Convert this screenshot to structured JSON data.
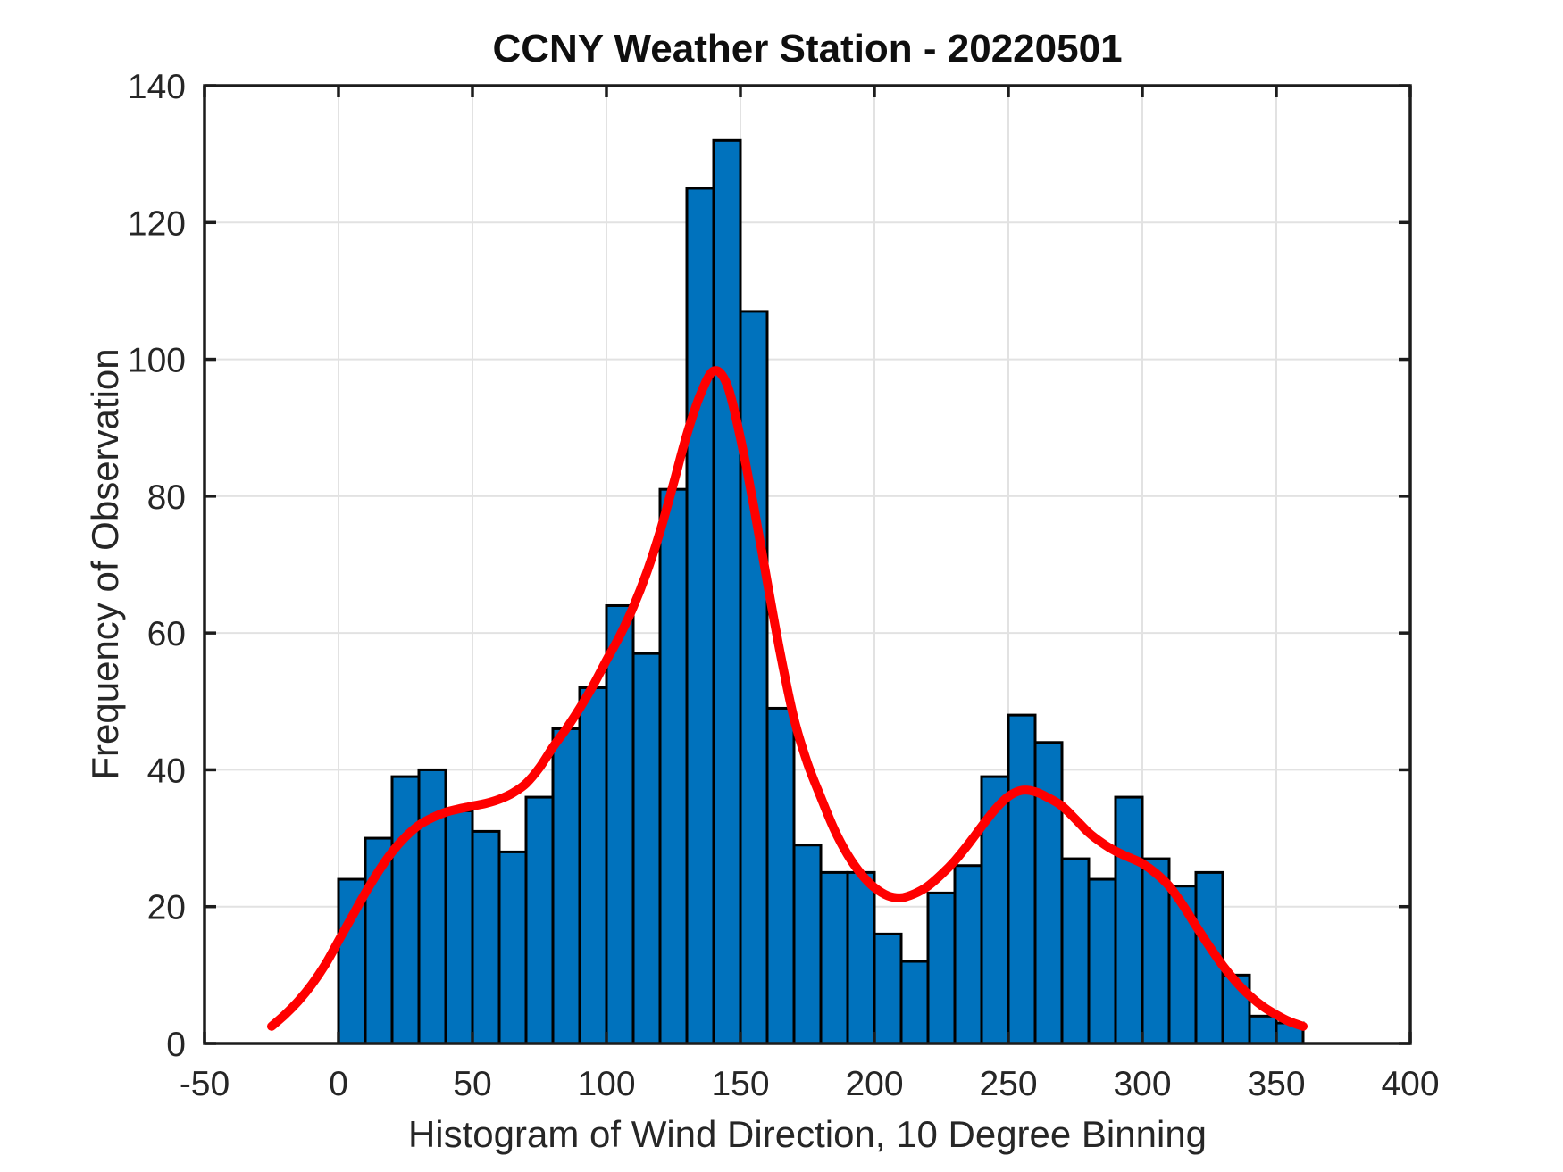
{
  "chart_data": {
    "type": "bar",
    "subtype": "histogram-with-smoothed-line",
    "title": "CCNY Weather Station - 20220501",
    "xlabel": "Histogram of Wind Direction, 10 Degree Binning",
    "ylabel": "Frequency of Observation",
    "xlim": [
      -50,
      400
    ],
    "ylim": [
      0,
      140
    ],
    "xticks": [
      -50,
      0,
      50,
      100,
      150,
      200,
      250,
      300,
      350,
      400
    ],
    "yticks": [
      0,
      20,
      40,
      60,
      80,
      100,
      120,
      140
    ],
    "grid": true,
    "legend": "none",
    "bars": {
      "bin_start": 0,
      "bin_width": 10,
      "values": [
        24,
        30,
        39,
        40,
        34,
        31,
        28,
        36,
        46,
        52,
        64,
        57,
        81,
        125,
        132,
        107,
        49,
        29,
        25,
        25,
        16,
        12,
        22,
        26,
        39,
        48,
        44,
        27,
        24,
        36,
        27,
        23,
        25,
        10,
        4,
        3
      ]
    },
    "curve": {
      "name": "smoothed-density-fit",
      "x": [
        -25,
        -20,
        -15,
        -10,
        -5,
        0,
        5,
        10,
        15,
        20,
        25,
        30,
        35,
        40,
        45,
        50,
        55,
        60,
        65,
        70,
        75,
        80,
        85,
        90,
        95,
        100,
        105,
        110,
        115,
        120,
        125,
        130,
        135,
        140,
        145,
        150,
        155,
        160,
        165,
        170,
        175,
        180,
        185,
        190,
        195,
        200,
        205,
        210,
        215,
        220,
        225,
        230,
        235,
        240,
        245,
        250,
        255,
        260,
        265,
        270,
        275,
        280,
        285,
        290,
        295,
        300,
        305,
        310,
        315,
        320,
        325,
        330,
        335,
        340,
        345,
        350,
        355,
        360
      ],
      "y": [
        2.5,
        4.2,
        6.2,
        8.6,
        11.5,
        15,
        18.5,
        22,
        25.2,
        28,
        30.2,
        31.9,
        33,
        33.8,
        34.3,
        34.7,
        35.1,
        35.7,
        36.6,
        38,
        40.3,
        43.3,
        46,
        49,
        52.3,
        56,
        59.6,
        63.8,
        68.8,
        74.8,
        81.8,
        89,
        94.8,
        98.3,
        96.3,
        88.5,
        78.5,
        67.5,
        56.8,
        47.5,
        41,
        36,
        31.3,
        27.6,
        24.8,
        22.8,
        21.6,
        21.3,
        21.9,
        23,
        24.7,
        26.7,
        29.1,
        31.7,
        34.2,
        36.1,
        37,
        36.8,
        35.9,
        34.7,
        32.8,
        30.8,
        29.3,
        28.1,
        27.2,
        26.3,
        24.9,
        23,
        20.3,
        17.2,
        14.2,
        11.4,
        9,
        7,
        5.4,
        4.2,
        3.2,
        2.5
      ]
    },
    "colors": {
      "bar_fill": "#0072BD",
      "bar_edge": "#000000",
      "curve": "#FF0000",
      "grid": "#E2E2E2",
      "axis": "#1C1C1C",
      "tick_text": "#262626",
      "background": "#FFFFFF"
    }
  }
}
